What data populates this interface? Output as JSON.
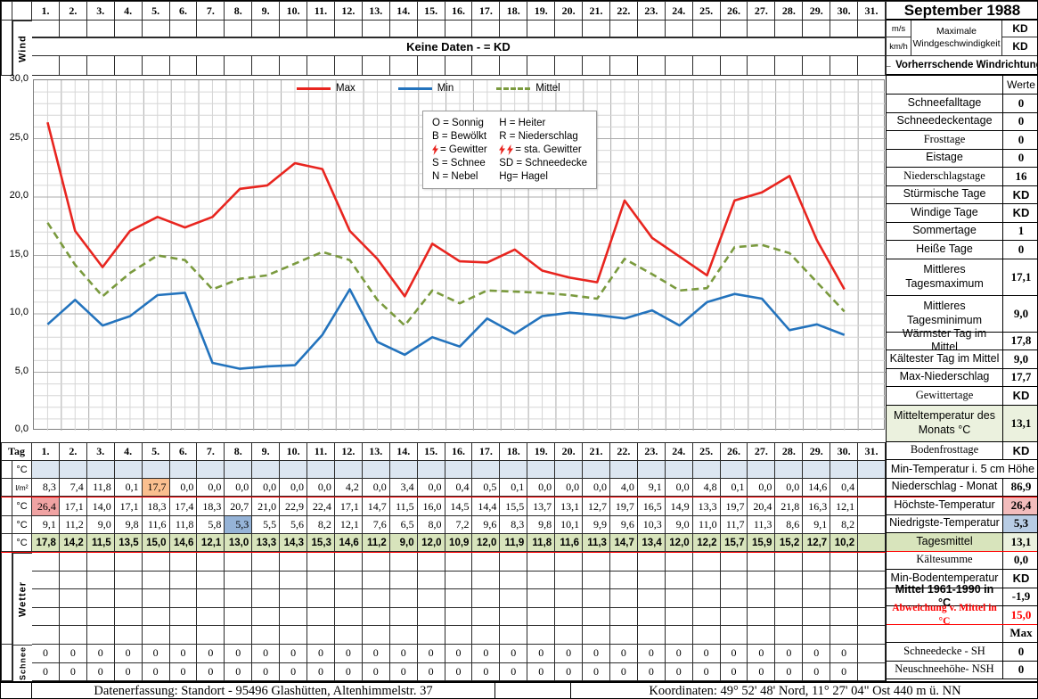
{
  "title": "September 1988",
  "days": [
    "1.",
    "2.",
    "3.",
    "4.",
    "5.",
    "6.",
    "7.",
    "8.",
    "9.",
    "10.",
    "11.",
    "12.",
    "13.",
    "14.",
    "15.",
    "16.",
    "17.",
    "18.",
    "19.",
    "20.",
    "21.",
    "22.",
    "23.",
    "24.",
    "25.",
    "26.",
    "27.",
    "28.",
    "29.",
    "30.",
    "31."
  ],
  "palette": {
    "band_green": "#dce5c3",
    "row_green": "#d8e4bc",
    "light_green": "#ebf1de",
    "light_blue": "#dce6f1",
    "pink_cell": "#f0a3a3",
    "pink_soft": "#f2bcbc",
    "orange_cell": "#fabf8f",
    "blue_cell": "#95b3d7",
    "blue_soft": "#b8cce4",
    "red": "#ff0000",
    "line_max": "#e8251f",
    "line_min": "#2373bd",
    "line_mittel": "#7a9a3e"
  },
  "wind": {
    "vertical_label": "Wind",
    "band_text": "Keine Daten -  = KD",
    "unit_top": "m/s",
    "unit_bottom": "km/h",
    "speed_label": "Maximale Windgeschwindigkeit",
    "speed_value_top": "KD",
    "speed_value_bottom": "KD",
    "direction_label": "←  Vorherrschende Windrichtung"
  },
  "chart_data": {
    "type": "line",
    "x": [
      1,
      2,
      3,
      4,
      5,
      6,
      7,
      8,
      9,
      10,
      11,
      12,
      13,
      14,
      15,
      16,
      17,
      18,
      19,
      20,
      21,
      22,
      23,
      24,
      25,
      26,
      27,
      28,
      29,
      30
    ],
    "x_axis_day_slots": 31,
    "ylim": [
      0,
      30
    ],
    "ytick_step": 5,
    "ytick_labels": [
      "0,0",
      "5,0",
      "10,0",
      "15,0",
      "20,0",
      "25,0",
      "30,0"
    ],
    "grid": true,
    "legend_position": "top-center",
    "series": [
      {
        "name": "Max",
        "style": "solid",
        "color": "#e8251f",
        "values": [
          26.4,
          17.1,
          14.0,
          17.1,
          18.3,
          17.4,
          18.3,
          20.7,
          21.0,
          22.9,
          22.4,
          17.1,
          14.7,
          11.5,
          16.0,
          14.5,
          14.4,
          15.5,
          13.7,
          13.1,
          12.7,
          19.7,
          16.5,
          14.9,
          13.3,
          19.7,
          20.4,
          21.8,
          16.3,
          12.1
        ]
      },
      {
        "name": "Min",
        "style": "solid",
        "color": "#2373bd",
        "values": [
          9.1,
          11.2,
          9.0,
          9.8,
          11.6,
          11.8,
          5.8,
          5.3,
          5.5,
          5.6,
          8.2,
          12.1,
          7.6,
          6.5,
          8.0,
          7.2,
          9.6,
          8.3,
          9.8,
          10.1,
          9.9,
          9.6,
          10.3,
          9.0,
          11.0,
          11.7,
          11.3,
          8.6,
          9.1,
          8.2
        ]
      },
      {
        "name": "Mittel",
        "style": "dashed",
        "color": "#7a9a3e",
        "values": [
          17.8,
          14.2,
          11.5,
          13.5,
          15.0,
          14.6,
          12.1,
          13.0,
          13.3,
          14.3,
          15.3,
          14.6,
          11.2,
          9.0,
          12.0,
          10.9,
          12.0,
          11.9,
          11.8,
          11.6,
          11.3,
          14.7,
          13.4,
          12.0,
          12.2,
          15.7,
          15.9,
          15.2,
          12.7,
          10.2
        ]
      }
    ]
  },
  "codes": {
    "left": [
      {
        "text": "O = Sonnig",
        "bolts": 0
      },
      {
        "text": "B = Bewölkt",
        "bolts": 0
      },
      {
        "text": "= Gewitter",
        "bolts": 1
      },
      {
        "text": "S = Schnee",
        "bolts": 0
      },
      {
        "text": "N = Nebel",
        "bolts": 0
      }
    ],
    "right": [
      {
        "text": "H = Heiter",
        "bolts": 0
      },
      {
        "text": "R = Niederschlag",
        "bolts": 0
      },
      {
        "text": "= sta. Gewitter",
        "bolts": 2
      },
      {
        "text": "SD = Schneedecke",
        "bolts": 0
      },
      {
        "text": "Hg= Hagel",
        "bolts": 0
      }
    ]
  },
  "table": {
    "day_label": "Tag",
    "wetter_label": "Wetter",
    "schnee_label": "Schnee",
    "rows": [
      {
        "key": "min5cm",
        "unit": "°C",
        "values": []
      },
      {
        "key": "precip",
        "unit": "l/m²",
        "values": [
          "8,3",
          "7,4",
          "11,8",
          "0,1",
          "17,7",
          "0,0",
          "0,0",
          "0,0",
          "0,0",
          "0,0",
          "0,0",
          "4,2",
          "0,0",
          "3,4",
          "0,0",
          "0,4",
          "0,5",
          "0,1",
          "0,0",
          "0,0",
          "0,0",
          "4,0",
          "9,1",
          "0,0",
          "4,8",
          "0,1",
          "0,0",
          "0,0",
          "14,6",
          "0,4"
        ]
      },
      {
        "key": "tmax",
        "unit": "°C",
        "values": [
          "26,4",
          "17,1",
          "14,0",
          "17,1",
          "18,3",
          "17,4",
          "18,3",
          "20,7",
          "21,0",
          "22,9",
          "22,4",
          "17,1",
          "14,7",
          "11,5",
          "16,0",
          "14,5",
          "14,4",
          "15,5",
          "13,7",
          "13,1",
          "12,7",
          "19,7",
          "16,5",
          "14,9",
          "13,3",
          "19,7",
          "20,4",
          "21,8",
          "16,3",
          "12,1"
        ]
      },
      {
        "key": "tmin",
        "unit": "°C",
        "values": [
          "9,1",
          "11,2",
          "9,0",
          "9,8",
          "11,6",
          "11,8",
          "5,8",
          "5,3",
          "5,5",
          "5,6",
          "8,2",
          "12,1",
          "7,6",
          "6,5",
          "8,0",
          "7,2",
          "9,6",
          "8,3",
          "9,8",
          "10,1",
          "9,9",
          "9,6",
          "10,3",
          "9,0",
          "11,0",
          "11,7",
          "11,3",
          "8,6",
          "9,1",
          "8,2"
        ]
      },
      {
        "key": "tmean",
        "unit": "°C",
        "values": [
          "17,8",
          "14,2",
          "11,5",
          "13,5",
          "15,0",
          "14,6",
          "12,1",
          "13,0",
          "13,3",
          "14,3",
          "15,3",
          "14,6",
          "11,2",
          "9,0",
          "12,0",
          "10,9",
          "12,0",
          "11,9",
          "11,8",
          "11,6",
          "11,3",
          "14,7",
          "13,4",
          "12,0",
          "12,2",
          "15,7",
          "15,9",
          "15,2",
          "12,7",
          "10,2"
        ]
      }
    ],
    "wetter_rows": 5,
    "schnee_rows": [
      [
        "0",
        "0",
        "0",
        "0",
        "0",
        "0",
        "0",
        "0",
        "0",
        "0",
        "0",
        "0",
        "0",
        "0",
        "0",
        "0",
        "0",
        "0",
        "0",
        "0",
        "0",
        "0",
        "0",
        "0",
        "0",
        "0",
        "0",
        "0",
        "0",
        "0"
      ],
      [
        "0",
        "0",
        "0",
        "0",
        "0",
        "0",
        "0",
        "0",
        "0",
        "0",
        "0",
        "0",
        "0",
        "0",
        "0",
        "0",
        "0",
        "0",
        "0",
        "0",
        "0",
        "0",
        "0",
        "0",
        "0",
        "0",
        "0",
        "0",
        "0",
        "0"
      ]
    ]
  },
  "sidebar": {
    "werte_header": "Werte",
    "rows": [
      {
        "label": "Schneefalltage",
        "value": "0"
      },
      {
        "label": "Schneedeckentage",
        "value": "0"
      },
      {
        "label": "Frosttage",
        "value": "0",
        "serif": true
      },
      {
        "label": "Eistage",
        "value": "0"
      },
      {
        "label": "Niederschlagstage",
        "value": "16",
        "serif": true
      },
      {
        "label": "Stürmische Tage",
        "value": "KD"
      },
      {
        "label": "Windige Tage",
        "value": "KD"
      },
      {
        "label": "Sommertage",
        "value": "1"
      },
      {
        "label": "Heiße Tage",
        "value": "0"
      },
      {
        "label": "Mittleres Tagesmaximum",
        "value": "17,1",
        "tall": true
      },
      {
        "label": "Mittleres Tagesminimum",
        "value": "9,0",
        "tall": true
      },
      {
        "label": "Wärmster Tag im Mittel",
        "value": "17,8"
      },
      {
        "label": "Kältester Tag im Mittel",
        "value": "9,0"
      },
      {
        "label": "Max-Niederschlag",
        "value": "17,7"
      },
      {
        "label": "Gewittertage",
        "value": "KD",
        "serif": true
      },
      {
        "label": "Mitteltemperatur des Monats °C",
        "value": "13,1",
        "tall": true,
        "variant": "green"
      },
      {
        "label": "Bodenfrosttage",
        "value": "KD",
        "serif": true
      },
      {
        "label": "Min-Temperatur i. 5 cm Höhe",
        "span": true
      },
      {
        "label": "Niederschlag - Monat",
        "value": "86,9"
      },
      {
        "label": "Höchste-Temperatur",
        "value": "26,4",
        "variant": "hoechste"
      },
      {
        "label": "Niedrigste-Temperatur",
        "value": "5,3",
        "variant": "niedrigste"
      },
      {
        "label": "Tagesmittel",
        "value": "13,1",
        "variant": "tagesmittel"
      },
      {
        "label": "Kältesumme",
        "value": "0,0",
        "serif": true
      },
      {
        "label": "Min-Bodentemperatur",
        "value": "KD"
      },
      {
        "label": "Mittel 1961-1990 in °C",
        "value": "-1,9",
        "boldLabel": true
      },
      {
        "label": "Abweichung v. Mittel in °C",
        "value": "15,0",
        "variant": "red"
      },
      {
        "label": "",
        "value": "Max",
        "boldValue": true,
        "serif": true
      },
      {
        "label": "Schneedecke -   SH",
        "value": "0",
        "serif": true
      },
      {
        "label": "Neuschneehöhe- NSH",
        "value": "0",
        "serif": true
      }
    ]
  },
  "footer": {
    "left": "Datenerfassung:  Standort -  95496  Glashütten, Altenhimmelstr. 37",
    "right": "Koordinaten:  49° 52' 48' Nord,   11° 27' 04\" Ost  440 m ü. NN"
  }
}
